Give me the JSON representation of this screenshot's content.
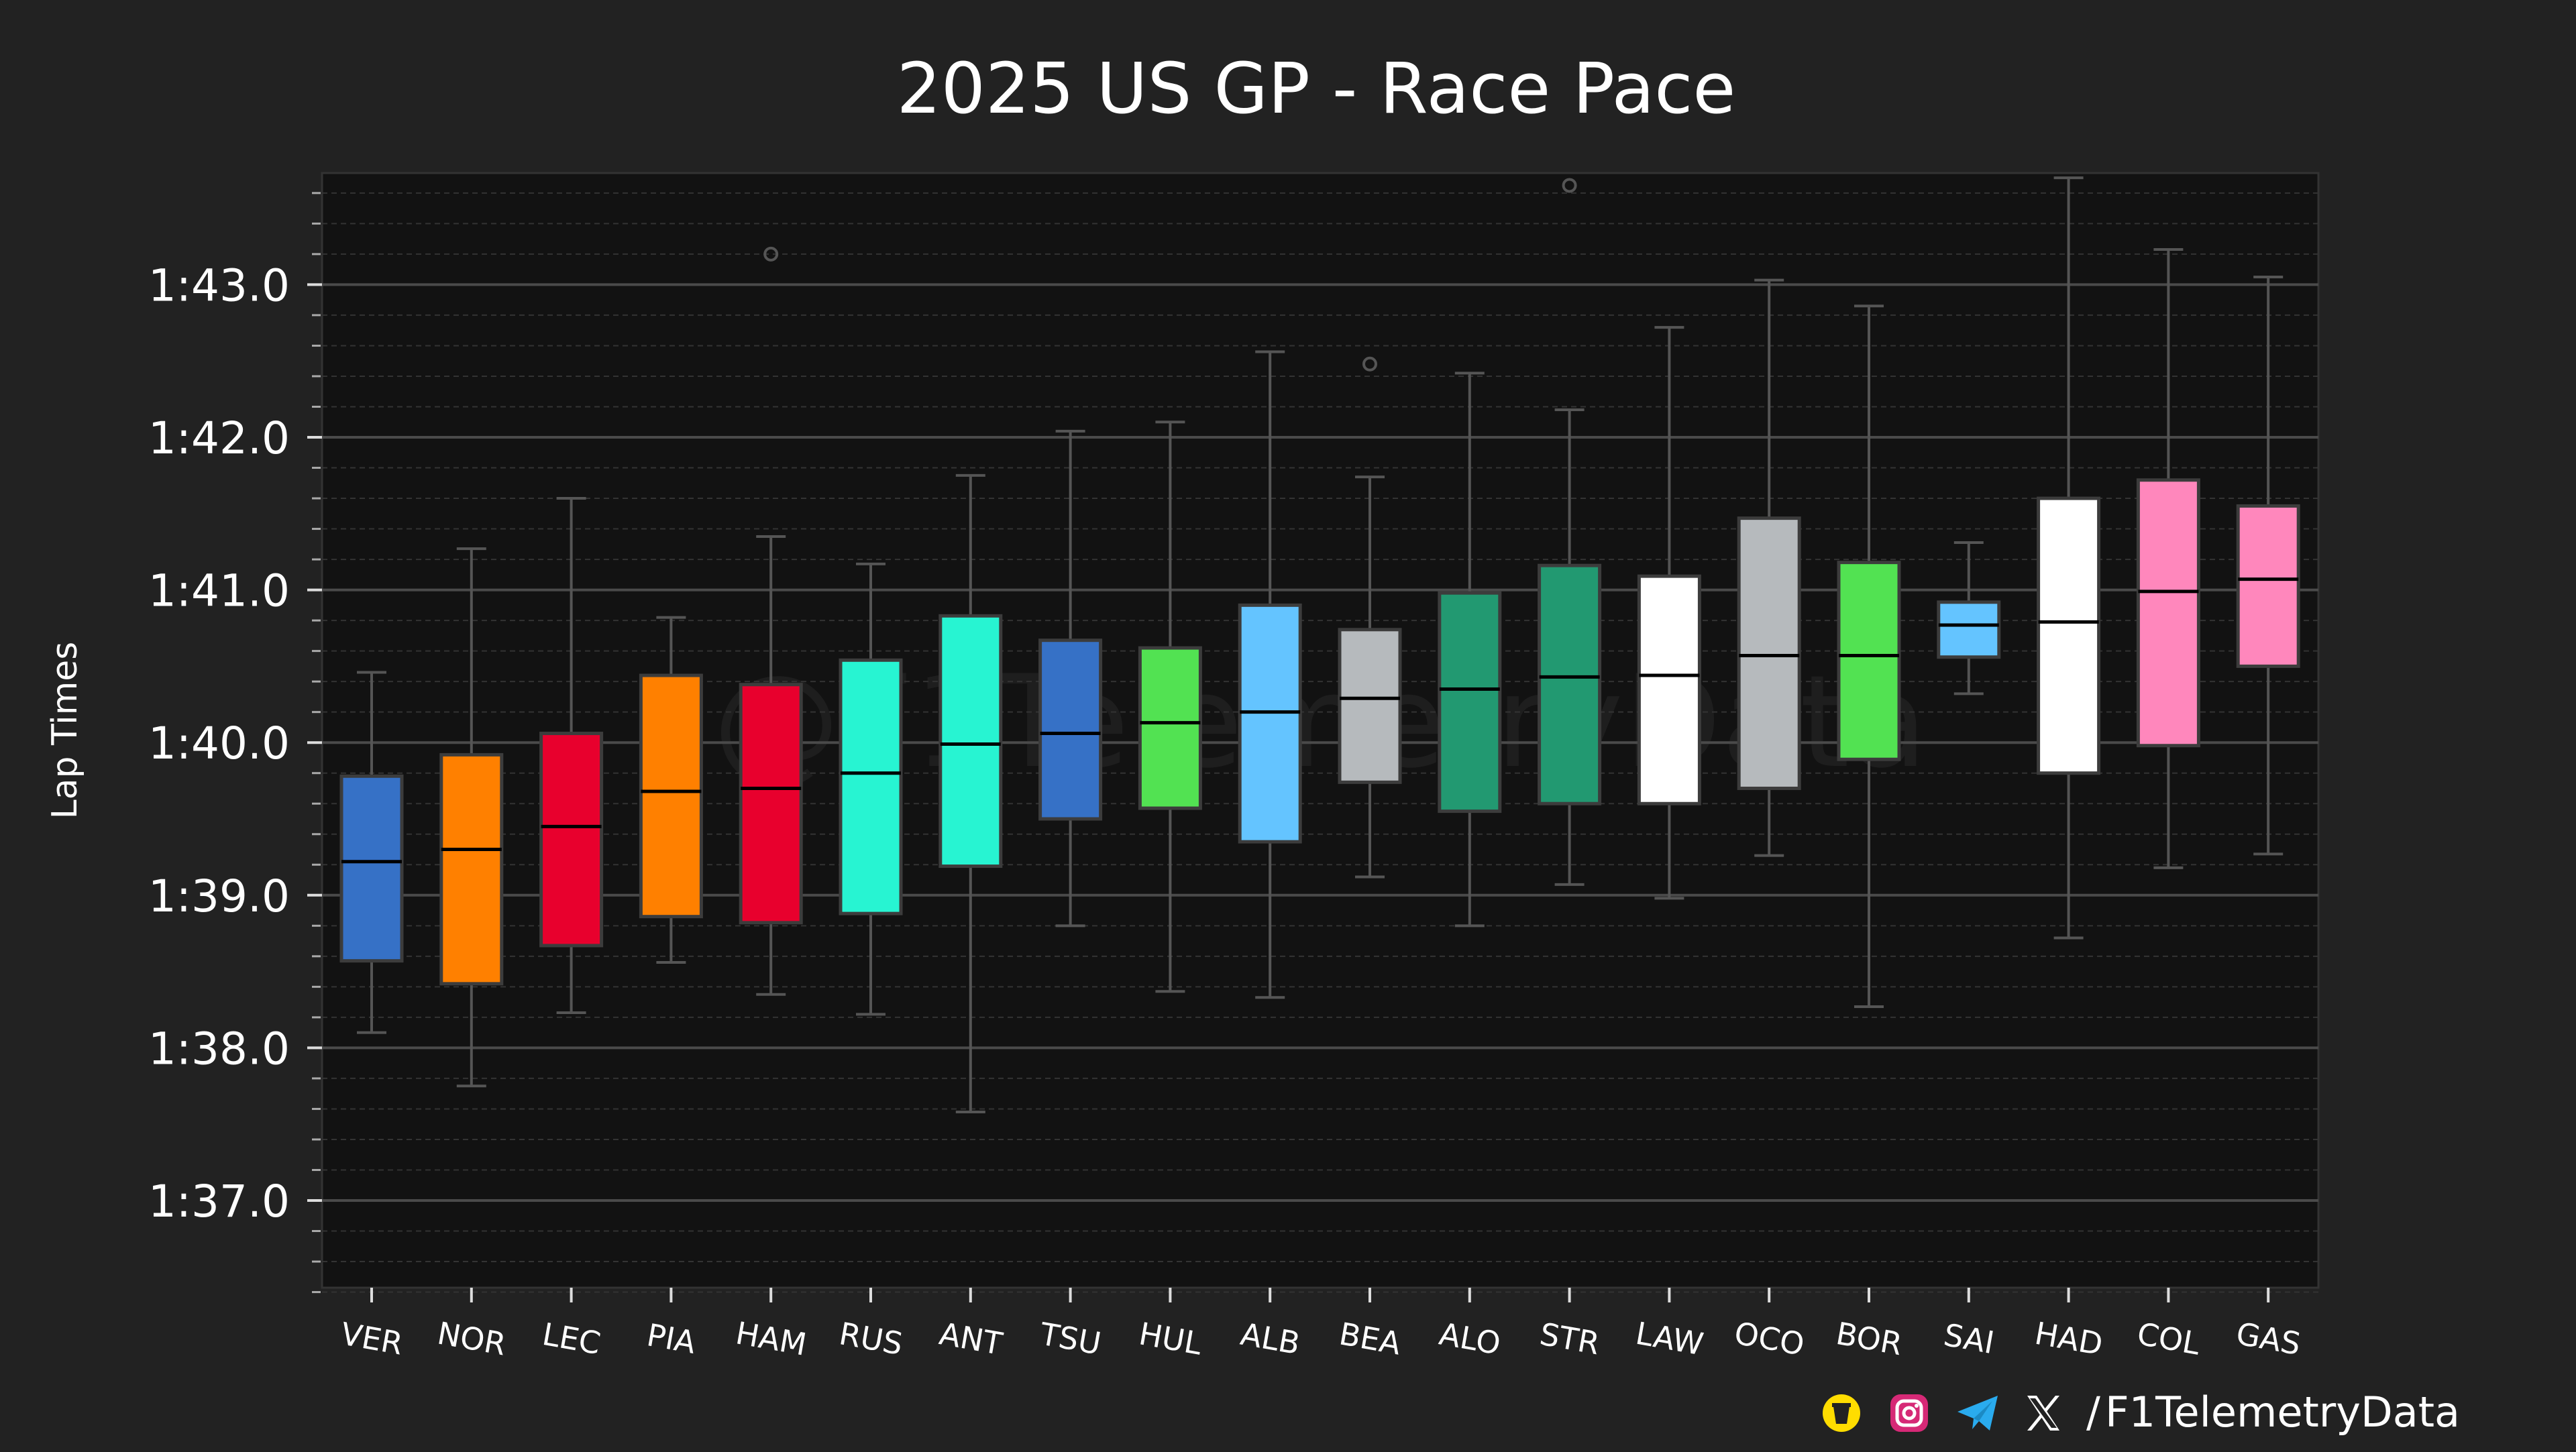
{
  "chart_data": {
    "type": "box",
    "title": "2025 US GP - Race Pace",
    "xlabel": "",
    "ylabel": "Lap Times",
    "y_unit": "seconds",
    "ylim": [
      96.4,
      103.7
    ],
    "y_ticks": [
      97,
      98,
      99,
      100,
      101,
      102,
      103
    ],
    "y_tick_labels": [
      "1:37.0",
      "1:38.0",
      "1:39.0",
      "1:40.0",
      "1:41.0",
      "1:42.0",
      "1:43.0"
    ],
    "grid": true,
    "watermark": "@F1TelemetryData",
    "categories": [
      "VER",
      "NOR",
      "LEC",
      "PIA",
      "HAM",
      "RUS",
      "ANT",
      "TSU",
      "HUL",
      "ALB",
      "BEA",
      "ALO",
      "STR",
      "LAW",
      "OCO",
      "BOR",
      "SAI",
      "HAD",
      "COL",
      "GAS"
    ],
    "boxes": [
      {
        "label": "VER",
        "whisker_low": 98.1,
        "q1": 98.57,
        "median": 99.22,
        "q3": 99.78,
        "whisker_high": 100.46,
        "outliers": [],
        "color": "#3671C6"
      },
      {
        "label": "NOR",
        "whisker_low": 97.75,
        "q1": 98.42,
        "median": 99.3,
        "q3": 99.92,
        "whisker_high": 101.27,
        "outliers": [],
        "color": "#FF8000"
      },
      {
        "label": "LEC",
        "whisker_low": 98.23,
        "q1": 98.67,
        "median": 99.45,
        "q3": 100.06,
        "whisker_high": 101.6,
        "outliers": [],
        "color": "#E8002D"
      },
      {
        "label": "PIA",
        "whisker_low": 98.56,
        "q1": 98.86,
        "median": 99.68,
        "q3": 100.44,
        "whisker_high": 100.82,
        "outliers": [],
        "color": "#FF8000"
      },
      {
        "label": "HAM",
        "whisker_low": 98.35,
        "q1": 98.82,
        "median": 99.7,
        "q3": 100.38,
        "whisker_high": 101.35,
        "outliers": [
          103.2
        ],
        "color": "#E8002D"
      },
      {
        "label": "RUS",
        "whisker_low": 98.22,
        "q1": 98.88,
        "median": 99.8,
        "q3": 100.54,
        "whisker_high": 101.17,
        "outliers": [],
        "color": "#27F4D2"
      },
      {
        "label": "ANT",
        "whisker_low": 97.58,
        "q1": 99.19,
        "median": 99.99,
        "q3": 100.83,
        "whisker_high": 101.75,
        "outliers": [],
        "color": "#27F4D2"
      },
      {
        "label": "TSU",
        "whisker_low": 98.8,
        "q1": 99.5,
        "median": 100.06,
        "q3": 100.67,
        "whisker_high": 102.04,
        "outliers": [],
        "color": "#3671C6"
      },
      {
        "label": "HUL",
        "whisker_low": 98.37,
        "q1": 99.57,
        "median": 100.13,
        "q3": 100.62,
        "whisker_high": 102.1,
        "outliers": [],
        "color": "#52E252"
      },
      {
        "label": "ALB",
        "whisker_low": 98.33,
        "q1": 99.35,
        "median": 100.2,
        "q3": 100.9,
        "whisker_high": 102.56,
        "outliers": [],
        "color": "#64C4FF"
      },
      {
        "label": "BEA",
        "whisker_low": 99.12,
        "q1": 99.74,
        "median": 100.29,
        "q3": 100.74,
        "whisker_high": 101.74,
        "outliers": [
          102.48
        ],
        "color": "#B6BABD"
      },
      {
        "label": "ALO",
        "whisker_low": 98.8,
        "q1": 99.55,
        "median": 100.35,
        "q3": 100.98,
        "whisker_high": 102.42,
        "outliers": [],
        "color": "#229971"
      },
      {
        "label": "STR",
        "whisker_low": 99.07,
        "q1": 99.6,
        "median": 100.43,
        "q3": 101.16,
        "whisker_high": 102.18,
        "outliers": [
          103.65
        ],
        "color": "#229971"
      },
      {
        "label": "LAW",
        "whisker_low": 98.98,
        "q1": 99.6,
        "median": 100.44,
        "q3": 101.09,
        "whisker_high": 102.72,
        "outliers": [],
        "color": "#FFFFFF"
      },
      {
        "label": "OCO",
        "whisker_low": 99.26,
        "q1": 99.7,
        "median": 100.57,
        "q3": 101.47,
        "whisker_high": 103.03,
        "outliers": [],
        "color": "#B6BABD"
      },
      {
        "label": "BOR",
        "whisker_low": 98.27,
        "q1": 99.89,
        "median": 100.57,
        "q3": 101.18,
        "whisker_high": 102.86,
        "outliers": [],
        "color": "#52E252"
      },
      {
        "label": "SAI",
        "whisker_low": 100.32,
        "q1": 100.56,
        "median": 100.77,
        "q3": 100.92,
        "whisker_high": 101.31,
        "outliers": [],
        "color": "#64C4FF"
      },
      {
        "label": "HAD",
        "whisker_low": 98.72,
        "q1": 99.8,
        "median": 100.79,
        "q3": 101.6,
        "whisker_high": 103.7,
        "outliers": [],
        "color": "#FFFFFF"
      },
      {
        "label": "COL",
        "whisker_low": 99.18,
        "q1": 99.98,
        "median": 100.99,
        "q3": 101.72,
        "whisker_high": 103.23,
        "outliers": [],
        "color": "#FF87BC"
      },
      {
        "label": "GAS",
        "whisker_low": 99.27,
        "q1": 100.5,
        "median": 101.07,
        "q3": 101.55,
        "whisker_high": 103.05,
        "outliers": [],
        "color": "#FF87BC"
      }
    ]
  },
  "footer": {
    "separator": "/",
    "handle": "F1TelemetryData",
    "icons": [
      "buymeacoffee-icon",
      "instagram-icon",
      "telegram-icon",
      "x-icon"
    ]
  },
  "colors": {
    "background": "#222222",
    "plot_background": "#121212",
    "grid_major": "#4a4a4a",
    "grid_minor": "#333333",
    "text": "#ffffff",
    "whisker": "#555555",
    "median": "#000000"
  }
}
